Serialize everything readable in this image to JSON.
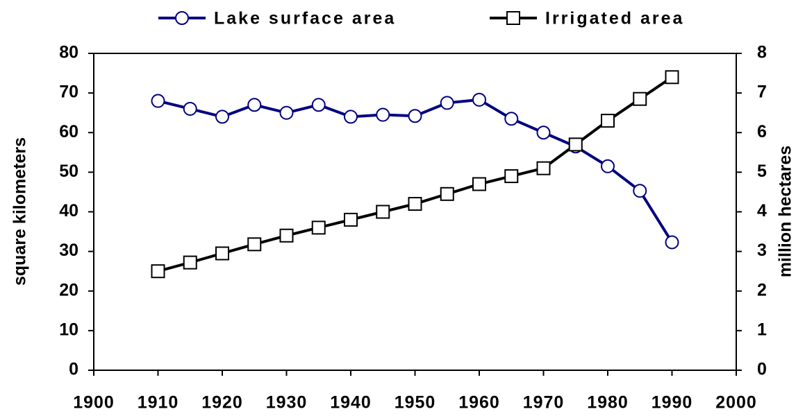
{
  "chart_data": {
    "type": "line",
    "x": [
      1910,
      1915,
      1920,
      1925,
      1930,
      1935,
      1940,
      1945,
      1950,
      1955,
      1960,
      1965,
      1970,
      1975,
      1980,
      1985,
      1990
    ],
    "series": [
      {
        "name": "Lake surface area",
        "color": "#000080",
        "marker": "circle",
        "values": [
          68,
          66,
          64,
          67,
          65,
          67,
          64,
          64.5,
          64.2,
          67.5,
          68.3,
          63.5,
          60,
          56.5,
          51.5,
          45.3,
          32.3
        ]
      },
      {
        "name": "Irrigated area",
        "color": "#000000",
        "marker": "square",
        "axis": "y2",
        "values": [
          2.5,
          2.72,
          2.95,
          3.18,
          3.4,
          3.6,
          3.8,
          4.0,
          4.2,
          4.45,
          4.7,
          4.9,
          5.1,
          5.7,
          6.3,
          6.85,
          7.4
        ]
      }
    ],
    "ylabel": "square kilometers",
    "y2label": "million hectares",
    "xlim": [
      1900,
      2000
    ],
    "xticks": [
      1900,
      1910,
      1920,
      1930,
      1940,
      1950,
      1960,
      1970,
      1980,
      1990,
      2000
    ],
    "ylim": [
      0,
      80
    ],
    "yticks": [
      0,
      10,
      20,
      30,
      40,
      50,
      60,
      70,
      80
    ],
    "y2lim": [
      0,
      8
    ],
    "y2ticks": [
      0,
      1,
      2,
      3,
      4,
      5,
      6,
      7,
      8
    ],
    "legend": "top",
    "grid": false
  }
}
